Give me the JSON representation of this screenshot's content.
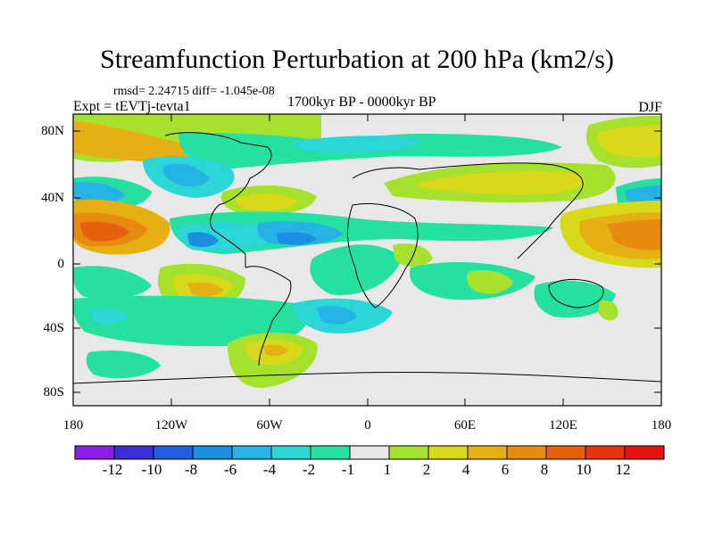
{
  "title": "Streamfunction Perturbation at 200 hPa (km2/s)",
  "stats": "rmsd= 2.24715 diff= -1.045e-08",
  "experiment": "Expt = tEVTj-tevta1",
  "period": "1700kyr BP - 0000kyr BP",
  "season": "DJF",
  "lat_labels": [
    "80N",
    "40N",
    "0",
    "40S",
    "80S"
  ],
  "lon_labels": [
    "180",
    "120W",
    "60W",
    "0",
    "60E",
    "120E",
    "180"
  ],
  "colorbar": {
    "labels": [
      "-12",
      "-10",
      "-8",
      "-6",
      "-4",
      "-2",
      "-1",
      "1",
      "2",
      "4",
      "6",
      "8",
      "10",
      "12"
    ],
    "colors": [
      "#8a1ee6",
      "#3b2ed8",
      "#1f5fe0",
      "#1e8ee3",
      "#25b3e6",
      "#2dd6d6",
      "#26e0a2",
      "#e8e8e8",
      "#a6e12e",
      "#d8d91a",
      "#e6b014",
      "#e68a10",
      "#e6600e",
      "#e6330e",
      "#e6120e"
    ]
  }
}
